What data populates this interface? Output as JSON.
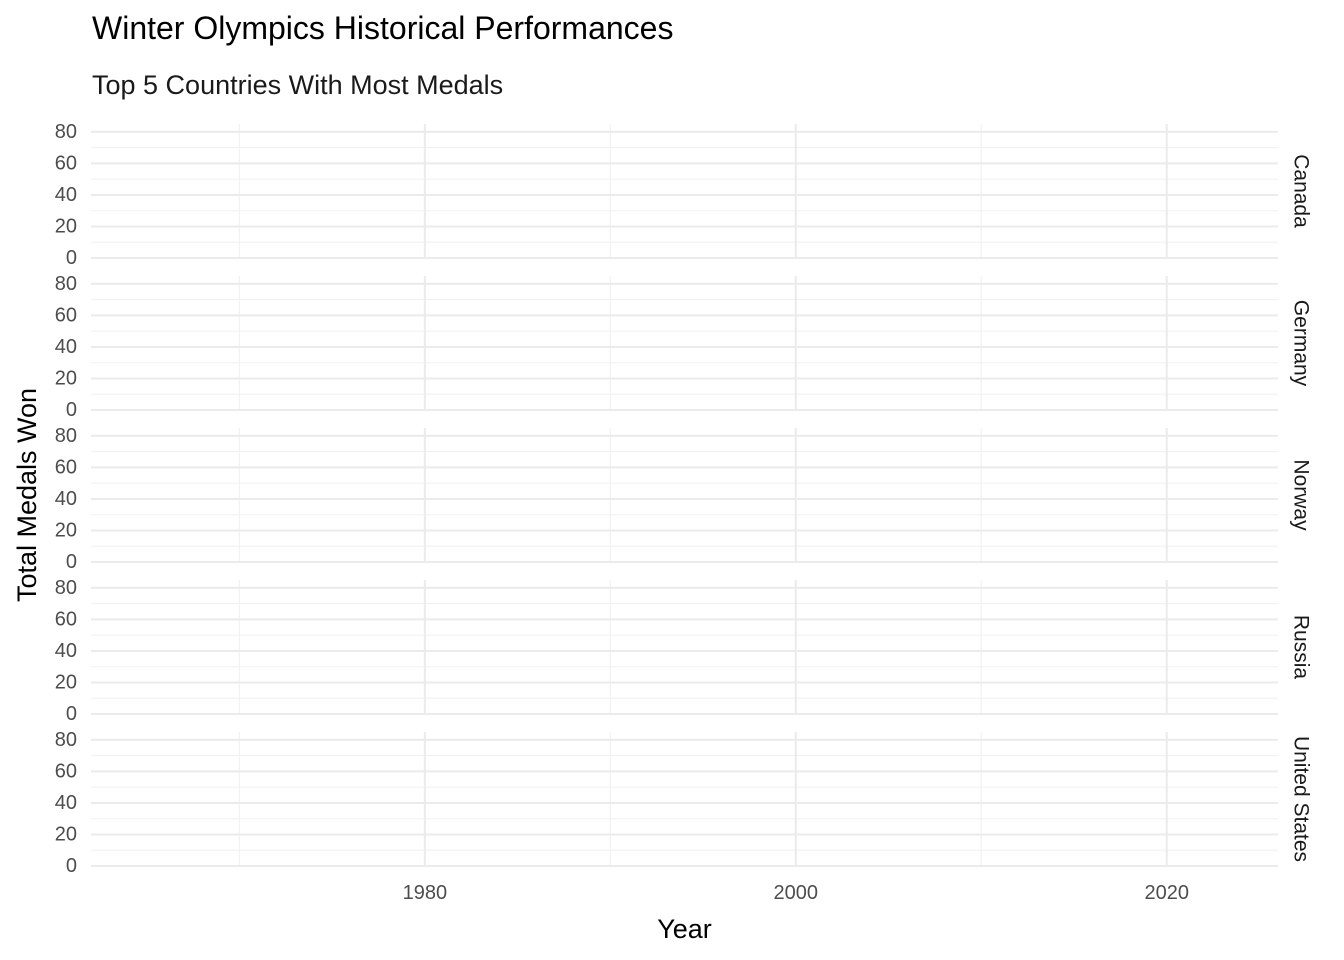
{
  "chart_data": {
    "type": "line",
    "title": "Winter Olympics Historical Performances",
    "subtitle": "Top 5 Countries With Most Medals",
    "xlabel": "Year",
    "ylabel": "Total Medals Won",
    "xlim": [
      1962,
      2026
    ],
    "ylim": [
      0,
      85
    ],
    "x_ticks": [
      1980,
      2000,
      2020
    ],
    "y_ticks": [
      0,
      20,
      40,
      60,
      80
    ],
    "facet": "rows",
    "facets": [
      "Canada",
      "Germany",
      "Norway",
      "Russia",
      "United States"
    ],
    "series": [],
    "grid": true,
    "legend": "none"
  }
}
